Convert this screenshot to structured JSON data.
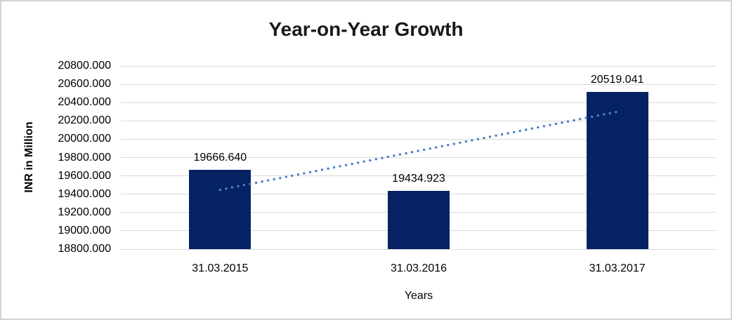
{
  "chart_data": {
    "type": "bar",
    "title": "Year-on-Year Growth",
    "xlabel": "Years",
    "ylabel": "INR in Million",
    "categories": [
      "31.03.2015",
      "31.03.2016",
      "31.03.2017"
    ],
    "values": [
      19666.64,
      19434.923,
      20519.041
    ],
    "data_labels": [
      "19666.640",
      "19434.923",
      "20519.041"
    ],
    "ylim": [
      18800,
      20800
    ],
    "ytick_step": 200,
    "ytick_labels": [
      "20800.000",
      "20600.000",
      "20400.000",
      "20200.000",
      "20000.000",
      "19800.000",
      "19600.000",
      "19400.000",
      "19200.000",
      "19000.000",
      "18800.000"
    ],
    "grid": true,
    "legend": "none",
    "trendline": {
      "type": "linear",
      "style": "dotted"
    },
    "colors": {
      "bar": "#052363",
      "trendline": "#4a80c4",
      "gridline": "#d9d9d9",
      "border": "#d2d2d2",
      "text": "#000000",
      "background": "#ffffff"
    }
  }
}
